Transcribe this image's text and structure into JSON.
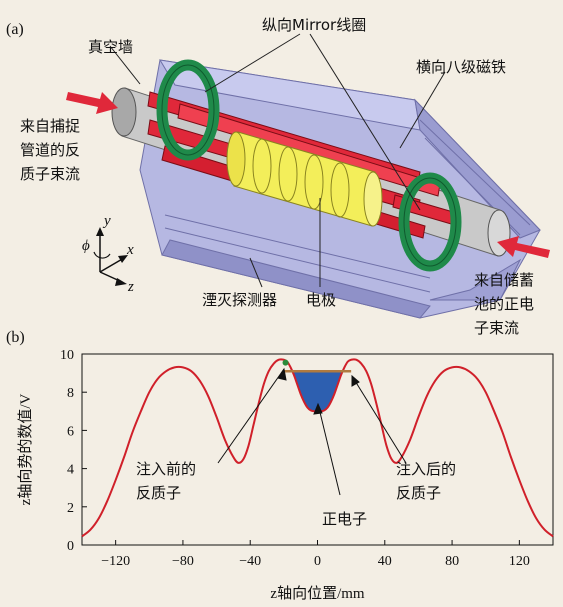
{
  "panel_a": {
    "label": "(a)",
    "vacuum_wall": "真空墙",
    "mirror_coils": "纵向Mirror线圈",
    "octupole": "横向八级磁铁",
    "antiproton_source": [
      "来自捕捉",
      "管道的反",
      "质子束流"
    ],
    "positron_source": [
      "来自储蓄",
      "池的正电",
      "子束流"
    ],
    "annihilation_detector": "湮灭探测器",
    "electrodes": "电极",
    "axis_y": "y",
    "axis_phi": "ϕ",
    "axis_x": "x",
    "axis_z": "z"
  },
  "panel_b": {
    "label": "(b)",
    "pbar_before": [
      "注入前的",
      "反质子"
    ],
    "pbar_after": [
      "注入后的",
      "反质子"
    ],
    "positron": "正电子"
  },
  "chart_data": {
    "type": "line",
    "xlabel": "z轴向位置/mm",
    "ylabel": "z轴向势的数值/V",
    "xlim": [
      -140,
      140
    ],
    "ylim": [
      0,
      10
    ],
    "xticks": [
      -120,
      -80,
      -40,
      0,
      40,
      80,
      120
    ],
    "yticks": [
      0,
      2,
      4,
      6,
      8,
      10
    ],
    "series": [
      {
        "color": "#d0202a",
        "x": [
          -140,
          -135,
          -130,
          -125,
          -120,
          -115,
          -110,
          -105,
          -100,
          -95,
          -90,
          -85,
          -80,
          -75,
          -70,
          -65,
          -60,
          -55,
          -50,
          -47,
          -44,
          -41,
          -38,
          -35,
          -32,
          -29,
          -26,
          -23,
          -20,
          -18,
          -16,
          -14,
          -12,
          -10,
          -8,
          -6,
          -4,
          -2,
          0,
          2,
          4,
          6,
          8,
          10,
          12,
          14,
          16,
          18,
          20,
          23,
          26,
          29,
          32,
          35,
          38,
          41,
          44,
          47,
          50,
          55,
          60,
          65,
          70,
          75,
          80,
          85,
          90,
          95,
          100,
          105,
          110,
          115,
          120,
          125,
          130,
          135,
          140
        ],
        "y": [
          0.45,
          0.8,
          1.4,
          2.3,
          3.4,
          4.6,
          5.9,
          7.0,
          8.0,
          8.7,
          9.1,
          9.3,
          9.3,
          9.1,
          8.6,
          7.8,
          6.7,
          5.5,
          4.6,
          4.3,
          4.5,
          5.2,
          6.3,
          7.4,
          8.4,
          9.1,
          9.5,
          9.7,
          9.7,
          9.6,
          9.3,
          8.9,
          8.4,
          7.9,
          7.5,
          7.2,
          7.05,
          7.0,
          7.0,
          7.0,
          7.05,
          7.2,
          7.5,
          7.9,
          8.4,
          8.9,
          9.3,
          9.6,
          9.7,
          9.7,
          9.5,
          9.1,
          8.4,
          7.4,
          6.3,
          5.2,
          4.5,
          4.3,
          4.6,
          5.5,
          6.7,
          7.8,
          8.6,
          9.1,
          9.3,
          9.3,
          9.1,
          8.7,
          8.0,
          7.0,
          5.9,
          4.6,
          3.4,
          2.3,
          1.4,
          0.8,
          0.45
        ]
      }
    ],
    "antiproton_level_before": 9.55,
    "antiproton_level_after": 9.1,
    "positron_fill_top": 9.1
  },
  "colors": {
    "background": "#f3eee4",
    "potential_curve": "#d0202a",
    "positron_fill": "#2d5fb0",
    "antiproton_level": "#b07a40",
    "antiproton_marker": "#2a8a3a",
    "coil_green": "#1f8a4a",
    "magnet_red": "#e0283a",
    "electrode_yellow": "#f3ee5a",
    "vacuum_wall_lavender": "#a6a8d8"
  }
}
